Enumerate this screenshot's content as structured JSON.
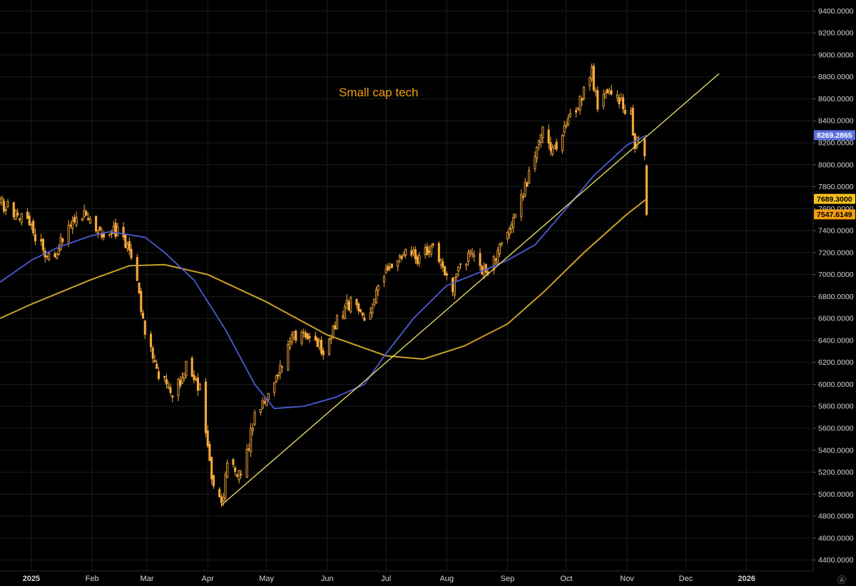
{
  "chart_data": {
    "type": "candlestick",
    "title": "Small cap tech",
    "colors": {
      "background": "#000000",
      "grid": "#1c1c1c",
      "candle": "#f7a93b",
      "ma_fast": "#4b5bd6",
      "ma_slow": "#c9a227",
      "trendline": "#f2e56b",
      "title": "#f39c12",
      "axis_text": "#d6d6d6",
      "badge_blue": "#5b6fe0",
      "badge_yellow": "#f6c21a",
      "badge_orange": "#f39c12"
    },
    "y_axis": {
      "position": "right",
      "scale": "linear",
      "min": 4300,
      "max": 9500,
      "ticks": [
        {
          "value": 4400,
          "label": "4400.0000"
        },
        {
          "value": 4600,
          "label": "4600.0000"
        },
        {
          "value": 4800,
          "label": "4800.0000"
        },
        {
          "value": 5000,
          "label": "5000.0000"
        },
        {
          "value": 5200,
          "label": "5200.0000"
        },
        {
          "value": 5400,
          "label": "5400.0000"
        },
        {
          "value": 5600,
          "label": "5600.0000"
        },
        {
          "value": 5800,
          "label": "5800.0000"
        },
        {
          "value": 6000,
          "label": "6000.0000"
        },
        {
          "value": 6200,
          "label": "6200.0000"
        },
        {
          "value": 6400,
          "label": "6400.0000"
        },
        {
          "value": 6600,
          "label": "6600.0000"
        },
        {
          "value": 6800,
          "label": "6800.0000"
        },
        {
          "value": 7000,
          "label": "7000.0000"
        },
        {
          "value": 7200,
          "label": "7200.0000"
        },
        {
          "value": 7400,
          "label": "7400.0000"
        },
        {
          "value": 7600,
          "label": "7600.0000"
        },
        {
          "value": 7800,
          "label": "7800.0000"
        },
        {
          "value": 8000,
          "label": "8000.0000"
        },
        {
          "value": 8200,
          "label": "8200.0000"
        },
        {
          "value": 8400,
          "label": "8400.0000"
        },
        {
          "value": 8600,
          "label": "8600.0000"
        },
        {
          "value": 8800,
          "label": "8800.0000"
        },
        {
          "value": 9000,
          "label": "9000.0000"
        },
        {
          "value": 9200,
          "label": "9200.0000"
        },
        {
          "value": 9400,
          "label": "9400.0000"
        }
      ]
    },
    "x_axis": {
      "start_date": "2024-12-16",
      "end_date": "2026-02-04",
      "ticks": [
        {
          "date": "2025-01-01",
          "label": "2025",
          "bold": true
        },
        {
          "date": "2025-02-01",
          "label": "Feb"
        },
        {
          "date": "2025-03-01",
          "label": "Mar"
        },
        {
          "date": "2025-04-01",
          "label": "Apr"
        },
        {
          "date": "2025-05-01",
          "label": "May"
        },
        {
          "date": "2025-06-01",
          "label": "Jun"
        },
        {
          "date": "2025-07-01",
          "label": "Jul"
        },
        {
          "date": "2025-08-01",
          "label": "Aug"
        },
        {
          "date": "2025-09-01",
          "label": "Sep"
        },
        {
          "date": "2025-10-01",
          "label": "Oct"
        },
        {
          "date": "2025-11-01",
          "label": "Nov"
        },
        {
          "date": "2025-12-01",
          "label": "Dec"
        },
        {
          "date": "2026-01-01",
          "label": "2026",
          "bold": true
        }
      ]
    },
    "close_path": [
      [
        "2024-12-16",
        7650
      ],
      [
        "2024-12-27",
        7550
      ],
      [
        "2025-01-03",
        7350
      ],
      [
        "2025-01-10",
        7150
      ],
      [
        "2025-01-17",
        7300
      ],
      [
        "2025-01-24",
        7580
      ],
      [
        "2025-01-31",
        7500
      ],
      [
        "2025-02-07",
        7300
      ],
      [
        "2025-02-14",
        7420
      ],
      [
        "2025-02-21",
        7180
      ],
      [
        "2025-02-28",
        6500
      ],
      [
        "2025-03-07",
        6100
      ],
      [
        "2025-03-14",
        5900
      ],
      [
        "2025-03-21",
        6150
      ],
      [
        "2025-03-28",
        5950
      ],
      [
        "2025-04-04",
        5050
      ],
      [
        "2025-04-08",
        4880
      ],
      [
        "2025-04-11",
        5300
      ],
      [
        "2025-04-18",
        5150
      ],
      [
        "2025-04-25",
        5700
      ],
      [
        "2025-05-02",
        5950
      ],
      [
        "2025-05-09",
        6150
      ],
      [
        "2025-05-13",
        6400
      ],
      [
        "2025-05-20",
        6480
      ],
      [
        "2025-05-30",
        6320
      ],
      [
        "2025-06-06",
        6600
      ],
      [
        "2025-06-13",
        6750
      ],
      [
        "2025-06-20",
        6600
      ],
      [
        "2025-06-27",
        6850
      ],
      [
        "2025-07-04",
        7100
      ],
      [
        "2025-07-11",
        7200
      ],
      [
        "2025-07-18",
        7150
      ],
      [
        "2025-07-25",
        7250
      ],
      [
        "2025-07-31",
        7050
      ],
      [
        "2025-08-04",
        6900
      ],
      [
        "2025-08-08",
        7100
      ],
      [
        "2025-08-15",
        7200
      ],
      [
        "2025-08-22",
        6950
      ],
      [
        "2025-08-29",
        7350
      ],
      [
        "2025-09-05",
        7500
      ],
      [
        "2025-09-12",
        7900
      ],
      [
        "2025-09-19",
        8300
      ],
      [
        "2025-09-26",
        8100
      ],
      [
        "2025-10-03",
        8450
      ],
      [
        "2025-10-10",
        8650
      ],
      [
        "2025-10-14",
        8850
      ],
      [
        "2025-10-17",
        8500
      ],
      [
        "2025-10-24",
        8700
      ],
      [
        "2025-10-31",
        8500
      ],
      [
        "2025-11-03",
        8450
      ],
      [
        "2025-11-05",
        8200
      ],
      [
        "2025-11-07",
        8250
      ],
      [
        "2025-11-10",
        8100
      ],
      [
        "2025-11-11",
        7550
      ]
    ],
    "moving_average_fast": {
      "points": [
        [
          "2024-12-16",
          6930
        ],
        [
          "2025-01-01",
          7130
        ],
        [
          "2025-01-15",
          7250
        ],
        [
          "2025-01-31",
          7350
        ],
        [
          "2025-02-10",
          7390
        ],
        [
          "2025-02-28",
          7340
        ],
        [
          "2025-03-10",
          7200
        ],
        [
          "2025-03-25",
          6950
        ],
        [
          "2025-04-10",
          6500
        ],
        [
          "2025-04-25",
          6000
        ],
        [
          "2025-05-05",
          5780
        ],
        [
          "2025-05-20",
          5800
        ],
        [
          "2025-06-05",
          5880
        ],
        [
          "2025-06-20",
          6000
        ],
        [
          "2025-07-01",
          6280
        ],
        [
          "2025-07-15",
          6600
        ],
        [
          "2025-08-01",
          6900
        ],
        [
          "2025-08-15",
          7000
        ],
        [
          "2025-09-01",
          7130
        ],
        [
          "2025-09-15",
          7270
        ],
        [
          "2025-10-01",
          7600
        ],
        [
          "2025-10-15",
          7900
        ],
        [
          "2025-11-01",
          8180
        ],
        [
          "2025-11-11",
          8269
        ]
      ]
    },
    "moving_average_slow": {
      "points": [
        [
          "2024-12-16",
          6600
        ],
        [
          "2025-01-01",
          6730
        ],
        [
          "2025-01-31",
          6950
        ],
        [
          "2025-02-20",
          7080
        ],
        [
          "2025-03-10",
          7090
        ],
        [
          "2025-04-01",
          7000
        ],
        [
          "2025-05-01",
          6750
        ],
        [
          "2025-06-01",
          6450
        ],
        [
          "2025-07-01",
          6260
        ],
        [
          "2025-07-20",
          6230
        ],
        [
          "2025-08-10",
          6350
        ],
        [
          "2025-09-01",
          6550
        ],
        [
          "2025-09-20",
          6850
        ],
        [
          "2025-10-10",
          7200
        ],
        [
          "2025-11-01",
          7550
        ],
        [
          "2025-11-11",
          7689
        ]
      ]
    },
    "trendline": {
      "from": [
        "2025-04-08",
        4900
      ],
      "to": [
        "2025-12-18",
        8830
      ]
    },
    "price_badges": [
      {
        "value": 8269.2865,
        "label": "8269.2865",
        "color": "#5b6fe0",
        "text_color": "#ffffff"
      },
      {
        "value": 7689.3,
        "label": "7689.3000",
        "color": "#f6c21a",
        "text_color": "#000000"
      },
      {
        "value": 7547.6149,
        "label": "7547.6149",
        "color": "#f39c12",
        "text_color": "#000000"
      }
    ],
    "corner_label": "A"
  }
}
